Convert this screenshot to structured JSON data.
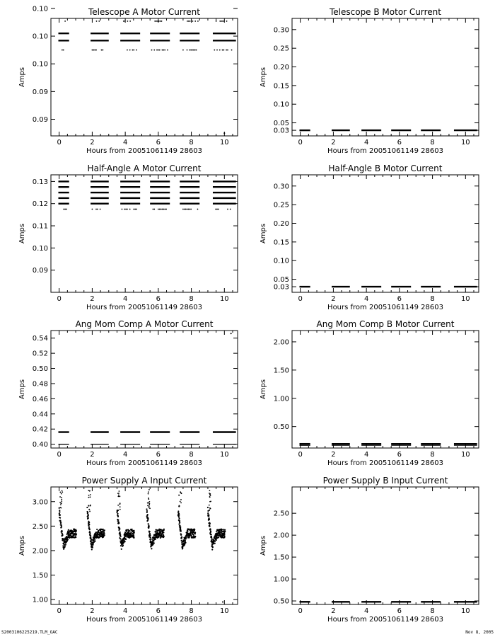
{
  "footer": {
    "left": "S2003106225219.TLM_GAC",
    "right": "Nov  8, 2005"
  },
  "chart_data": [
    {
      "id": "tel-a",
      "type": "scatter",
      "title": "Telescope A Motor Current",
      "xlabel": "Hours from 20051061149 28603",
      "ylabel": "Amps",
      "xlim": [
        -0.5,
        10.8
      ],
      "ylim": [
        0.082,
        0.1032
      ],
      "xticks": [
        0,
        2,
        4,
        6,
        8,
        10
      ],
      "yticks": [
        0.085,
        0.09,
        0.095,
        0.1,
        0.105
      ],
      "ytick_labels": [
        "0.09",
        "0.09",
        "0.10",
        "0.10",
        "0.10"
      ],
      "series": [
        {
          "kind": "bands",
          "y": 0.1005,
          "segments": [
            [
              -0.05,
              0.6
            ],
            [
              1.9,
              3.0
            ],
            [
              3.7,
              4.9
            ],
            [
              5.5,
              6.7
            ],
            [
              7.3,
              8.5
            ],
            [
              9.3,
              10.7
            ]
          ]
        },
        {
          "kind": "bands",
          "y": 0.0992,
          "segments": [
            [
              -0.05,
              0.6
            ],
            [
              1.9,
              3.0
            ],
            [
              3.7,
              4.9
            ],
            [
              5.5,
              6.7
            ],
            [
              7.3,
              8.5
            ],
            [
              9.3,
              10.7
            ]
          ]
        },
        {
          "kind": "dotrows",
          "y": 0.0975,
          "segments": [
            [
              0.1,
              0.5
            ],
            [
              2.0,
              2.8
            ],
            [
              3.8,
              4.7
            ],
            [
              5.6,
              6.6
            ],
            [
              7.5,
              8.4
            ],
            [
              9.4,
              10.5
            ]
          ]
        },
        {
          "kind": "dotrows",
          "y": 0.1027,
          "segments": [
            [
              0.2,
              0.4
            ],
            [
              2.1,
              2.5
            ],
            [
              3.9,
              4.3
            ],
            [
              5.8,
              6.2
            ],
            [
              7.6,
              8.4
            ],
            [
              9.5,
              10.2
            ]
          ]
        },
        {
          "kind": "points",
          "x": [
            10.0
          ],
          "y": [
            0.0825
          ]
        }
      ]
    },
    {
      "id": "tel-b",
      "type": "scatter",
      "title": "Telescope B Motor Current",
      "xlabel": "Hours from 20051061149 28603",
      "ylabel": "Amps",
      "xlim": [
        -0.5,
        10.8
      ],
      "ylim": [
        0.015,
        0.33
      ],
      "xticks": [
        0,
        2,
        4,
        6,
        8,
        10
      ],
      "yticks": [
        0.03,
        0.05,
        0.1,
        0.15,
        0.2,
        0.25,
        0.3
      ],
      "ytick_labels": [
        "0.03",
        "0.05",
        "0.10",
        "0.15",
        "0.20",
        "0.25",
        "0.30"
      ],
      "series": [
        {
          "kind": "bands",
          "y": 0.03,
          "segments": [
            [
              -0.05,
              0.6
            ],
            [
              1.9,
              3.0
            ],
            [
              3.7,
              4.9
            ],
            [
              5.5,
              6.7
            ],
            [
              7.3,
              8.5
            ],
            [
              9.3,
              10.7
            ]
          ]
        }
      ]
    },
    {
      "id": "half-a",
      "type": "scatter",
      "title": "Half-Angle A Motor Current",
      "xlabel": "Hours from 20051061149 28603",
      "ylabel": "Amps",
      "xlim": [
        -0.5,
        10.8
      ],
      "ylim": [
        0.08,
        0.133
      ],
      "xticks": [
        0,
        2,
        4,
        6,
        8,
        10
      ],
      "yticks": [
        0.09,
        0.1,
        0.11,
        0.12,
        0.13
      ],
      "ytick_labels": [
        "0.09",
        "0.10",
        "0.11",
        "0.12",
        "0.13"
      ],
      "series": [
        {
          "kind": "bands",
          "y": 0.13,
          "segments": [
            [
              -0.05,
              0.6
            ],
            [
              1.9,
              3.0
            ],
            [
              3.7,
              4.9
            ],
            [
              5.5,
              6.7
            ],
            [
              7.3,
              8.5
            ],
            [
              9.3,
              10.7
            ]
          ]
        },
        {
          "kind": "bands",
          "y": 0.1275,
          "segments": [
            [
              -0.05,
              0.6
            ],
            [
              1.9,
              3.0
            ],
            [
              3.7,
              4.9
            ],
            [
              5.5,
              6.7
            ],
            [
              7.3,
              8.5
            ],
            [
              9.3,
              10.7
            ]
          ]
        },
        {
          "kind": "bands",
          "y": 0.125,
          "segments": [
            [
              -0.05,
              0.6
            ],
            [
              1.9,
              3.0
            ],
            [
              3.7,
              4.9
            ],
            [
              5.5,
              6.7
            ],
            [
              7.3,
              8.5
            ],
            [
              9.3,
              10.7
            ]
          ]
        },
        {
          "kind": "bands",
          "y": 0.1225,
          "segments": [
            [
              -0.05,
              0.6
            ],
            [
              1.9,
              3.0
            ],
            [
              3.7,
              4.9
            ],
            [
              5.5,
              6.7
            ],
            [
              7.3,
              8.5
            ],
            [
              9.3,
              10.7
            ]
          ]
        },
        {
          "kind": "bands",
          "y": 0.12,
          "segments": [
            [
              -0.05,
              0.6
            ],
            [
              1.9,
              3.0
            ],
            [
              3.7,
              4.9
            ],
            [
              5.5,
              6.7
            ],
            [
              7.3,
              8.5
            ],
            [
              9.3,
              10.7
            ]
          ]
        },
        {
          "kind": "dotrows",
          "y": 0.1175,
          "segments": [
            [
              0.2,
              0.5
            ],
            [
              2.0,
              2.8
            ],
            [
              3.8,
              4.7
            ],
            [
              5.6,
              6.6
            ],
            [
              7.5,
              8.4
            ],
            [
              9.4,
              10.5
            ]
          ]
        }
      ]
    },
    {
      "id": "half-b",
      "type": "scatter",
      "title": "Half-Angle B Motor Current",
      "xlabel": "Hours from 20051061149 28603",
      "ylabel": "Amps",
      "xlim": [
        -0.5,
        10.8
      ],
      "ylim": [
        0.015,
        0.33
      ],
      "xticks": [
        0,
        2,
        4,
        6,
        8,
        10
      ],
      "yticks": [
        0.03,
        0.05,
        0.1,
        0.15,
        0.2,
        0.25,
        0.3
      ],
      "ytick_labels": [
        "0.03",
        "0.05",
        "0.10",
        "0.15",
        "0.20",
        "0.25",
        "0.30"
      ],
      "series": [
        {
          "kind": "bands",
          "y": 0.03,
          "segments": [
            [
              -0.05,
              0.6
            ],
            [
              1.9,
              3.0
            ],
            [
              3.7,
              4.9
            ],
            [
              5.5,
              6.7
            ],
            [
              7.3,
              8.5
            ],
            [
              9.3,
              10.7
            ]
          ]
        }
      ]
    },
    {
      "id": "ang-a",
      "type": "scatter",
      "title": "Ang Mom Comp A Motor Current",
      "xlabel": "Hours from 20051061149 28603",
      "ylabel": "Amps",
      "xlim": [
        -0.5,
        10.8
      ],
      "ylim": [
        0.395,
        0.55
      ],
      "xticks": [
        0,
        2,
        4,
        6,
        8,
        10
      ],
      "yticks": [
        0.4,
        0.42,
        0.44,
        0.46,
        0.48,
        0.5,
        0.52,
        0.54
      ],
      "ytick_labels": [
        "0.40",
        "0.42",
        "0.44",
        "0.46",
        "0.48",
        "0.50",
        "0.52",
        "0.54"
      ],
      "series": [
        {
          "kind": "bands",
          "y": 0.416,
          "segments": [
            [
              -0.05,
              0.6
            ],
            [
              1.9,
              3.0
            ],
            [
              3.7,
              4.9
            ],
            [
              5.5,
              6.7
            ],
            [
              7.3,
              8.5
            ],
            [
              9.3,
              10.7
            ]
          ]
        },
        {
          "kind": "thinbands",
          "y": 0.4,
          "segments": [
            [
              -0.05,
              0.6
            ],
            [
              1.9,
              3.0
            ],
            [
              3.7,
              4.9
            ],
            [
              5.5,
              6.7
            ],
            [
              7.3,
              8.5
            ],
            [
              9.3,
              10.7
            ]
          ]
        },
        {
          "kind": "points",
          "x": [
            10.4
          ],
          "y": [
            0.546
          ]
        }
      ]
    },
    {
      "id": "ang-b",
      "type": "scatter",
      "title": "Ang Mom Comp B Motor Current",
      "xlabel": "Hours from 20051061149 28603",
      "ylabel": "Amps",
      "xlim": [
        -0.5,
        10.8
      ],
      "ylim": [
        0.12,
        2.2
      ],
      "xticks": [
        0,
        2,
        4,
        6,
        8,
        10
      ],
      "yticks": [
        0.5,
        1.0,
        1.5,
        2.0
      ],
      "ytick_labels": [
        "0.50",
        "1.00",
        "1.50",
        "2.00"
      ],
      "series": [
        {
          "kind": "bands",
          "y": 0.175,
          "segments": [
            [
              -0.05,
              0.6
            ],
            [
              1.9,
              3.0
            ],
            [
              3.7,
              4.9
            ],
            [
              5.5,
              6.7
            ],
            [
              7.3,
              8.5
            ],
            [
              9.3,
              10.7
            ]
          ]
        },
        {
          "kind": "thinbands",
          "y": 0.2,
          "segments": [
            [
              -0.05,
              0.6
            ],
            [
              1.9,
              3.0
            ],
            [
              3.7,
              4.9
            ],
            [
              5.5,
              6.7
            ],
            [
              7.3,
              8.5
            ],
            [
              9.3,
              10.7
            ]
          ]
        }
      ]
    },
    {
      "id": "ps-a",
      "type": "scatter",
      "title": "Power Supply A Input Current",
      "xlabel": "Hours from 20051061149 28603",
      "ylabel": "Amps",
      "xlim": [
        -0.5,
        10.8
      ],
      "ylim": [
        0.9,
        3.3
      ],
      "xticks": [
        0,
        2,
        4,
        6,
        8,
        10
      ],
      "yticks": [
        1.0,
        1.5,
        2.0,
        2.5,
        3.0
      ],
      "ytick_labels": [
        "1.00",
        "1.50",
        "2.00",
        "2.50",
        "3.00"
      ],
      "series": [
        {
          "kind": "orbits",
          "starts": [
            0.0,
            1.7,
            3.5,
            5.3,
            7.2,
            9.0
          ],
          "length": 1.05,
          "peak": 2.8,
          "trough": 2.1,
          "base": 2.35,
          "spike_max": 3.25
        },
        {
          "kind": "points",
          "x": [
            9.9
          ],
          "y": [
            0.95
          ]
        }
      ]
    },
    {
      "id": "ps-b",
      "type": "scatter",
      "title": "Power Supply B Input Current",
      "xlabel": "Hours from 20051061149 28603",
      "ylabel": "Amps",
      "xlim": [
        -0.5,
        10.8
      ],
      "ylim": [
        0.42,
        3.1
      ],
      "xticks": [
        0,
        2,
        4,
        6,
        8,
        10
      ],
      "yticks": [
        0.5,
        1.0,
        1.5,
        2.0,
        2.5
      ],
      "ytick_labels": [
        "0.50",
        "1.00",
        "1.50",
        "2.00",
        "2.50"
      ],
      "series": [
        {
          "kind": "bands",
          "y": 0.48,
          "segments": [
            [
              -0.05,
              0.6
            ],
            [
              1.9,
              3.0
            ],
            [
              3.7,
              4.9
            ],
            [
              5.5,
              6.7
            ],
            [
              7.3,
              8.5
            ],
            [
              9.3,
              10.7
            ]
          ]
        }
      ]
    }
  ]
}
